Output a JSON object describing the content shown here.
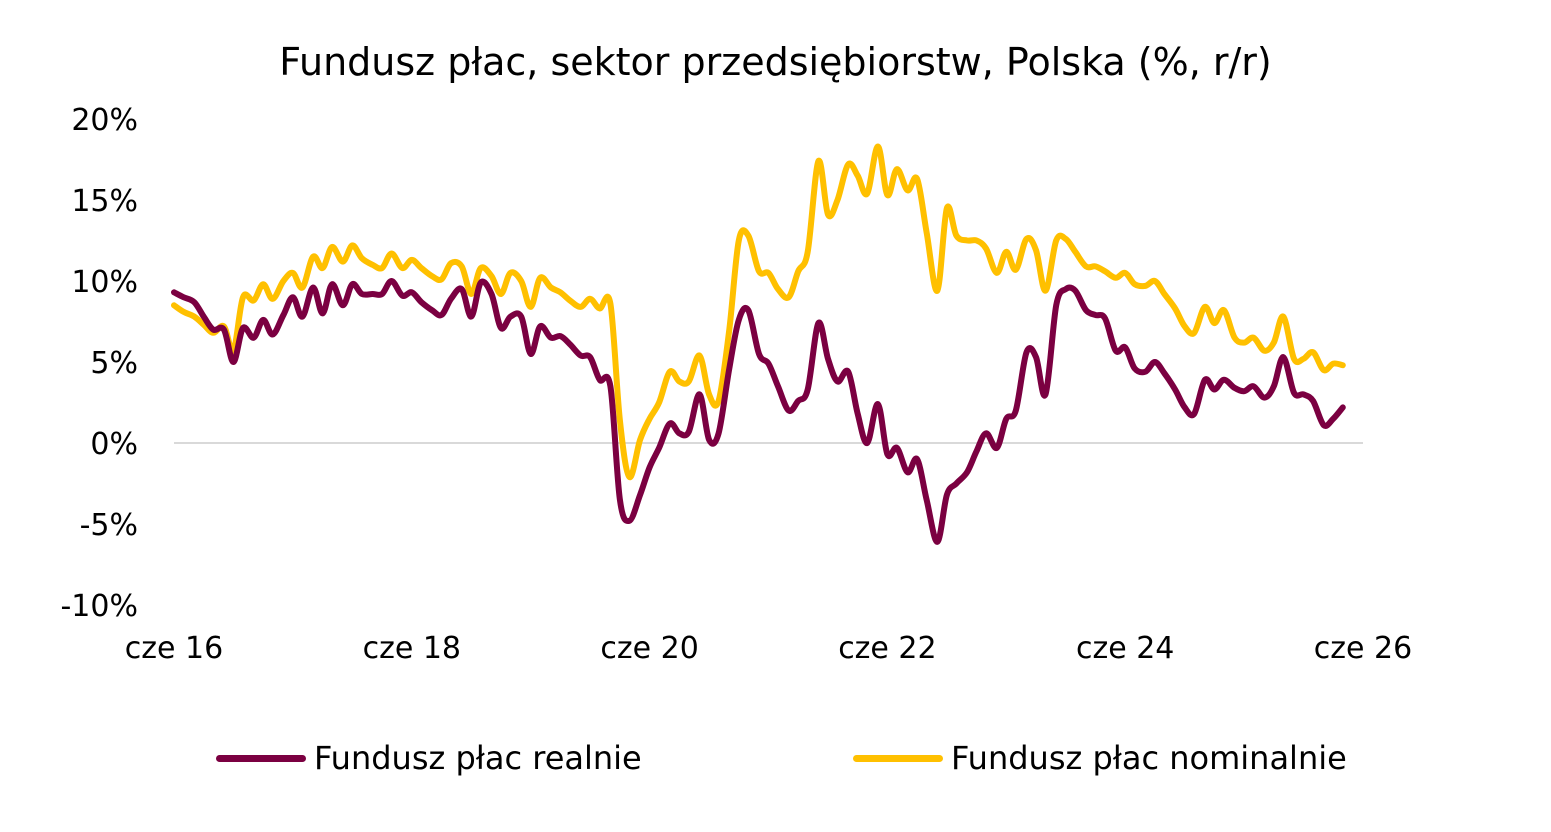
{
  "colors": {
    "real": "#7B0041",
    "nominal": "#FFC000",
    "zero_line": "#D9D9D9"
  },
  "chart_data": {
    "type": "line",
    "title": "Fundusz płac, sektor przedsiębiorstw, Polska (%, r/r)",
    "ylim": [
      -10,
      20
    ],
    "yticks": [
      20,
      15,
      10,
      5,
      0,
      -5,
      -10
    ],
    "ytick_labels": [
      "20%",
      "15%",
      "10%",
      "5%",
      "0%",
      "-5%",
      "-10%"
    ],
    "xlim": [
      2016.5,
      2026.5
    ],
    "xtick_labels": [
      {
        "x": 2016.5,
        "label": "cze 16"
      },
      {
        "x": 2018.5,
        "label": "cze 18"
      },
      {
        "x": 2020.5,
        "label": "cze 20"
      },
      {
        "x": 2022.5,
        "label": "cze 22"
      },
      {
        "x": 2024.5,
        "label": "cze 24"
      },
      {
        "x": 2026.5,
        "label": "cze 26"
      }
    ],
    "grid": false,
    "legend_position": "bottom",
    "series": [
      {
        "name": "Fundusz płac realnie",
        "color": "#7B0041",
        "points": [
          [
            2016.5,
            9.3
          ],
          [
            2016.58,
            9.0
          ],
          [
            2016.67,
            8.7
          ],
          [
            2016.75,
            7.8
          ],
          [
            2016.83,
            7.0
          ],
          [
            2016.92,
            7.0
          ],
          [
            2017.0,
            5.0
          ],
          [
            2017.08,
            7.1
          ],
          [
            2017.17,
            6.5
          ],
          [
            2017.25,
            7.6
          ],
          [
            2017.33,
            6.7
          ],
          [
            2017.42,
            7.9
          ],
          [
            2017.5,
            9.0
          ],
          [
            2017.58,
            7.8
          ],
          [
            2017.67,
            9.6
          ],
          [
            2017.75,
            8.0
          ],
          [
            2017.83,
            9.8
          ],
          [
            2017.92,
            8.5
          ],
          [
            2018.0,
            9.8
          ],
          [
            2018.08,
            9.2
          ],
          [
            2018.17,
            9.2
          ],
          [
            2018.25,
            9.2
          ],
          [
            2018.33,
            10.0
          ],
          [
            2018.42,
            9.1
          ],
          [
            2018.5,
            9.3
          ],
          [
            2018.58,
            8.7
          ],
          [
            2018.67,
            8.2
          ],
          [
            2018.75,
            7.9
          ],
          [
            2018.83,
            8.9
          ],
          [
            2018.92,
            9.5
          ],
          [
            2019.0,
            7.8
          ],
          [
            2019.08,
            9.9
          ],
          [
            2019.17,
            9.2
          ],
          [
            2019.25,
            7.1
          ],
          [
            2019.33,
            7.8
          ],
          [
            2019.42,
            7.8
          ],
          [
            2019.5,
            5.5
          ],
          [
            2019.58,
            7.2
          ],
          [
            2019.67,
            6.5
          ],
          [
            2019.75,
            6.6
          ],
          [
            2019.83,
            6.1
          ],
          [
            2019.92,
            5.4
          ],
          [
            2020.0,
            5.3
          ],
          [
            2020.08,
            3.9
          ],
          [
            2020.17,
            3.5
          ],
          [
            2020.25,
            -3.5
          ],
          [
            2020.33,
            -4.8
          ],
          [
            2020.42,
            -3.2
          ],
          [
            2020.5,
            -1.5
          ],
          [
            2020.58,
            -0.3
          ],
          [
            2020.67,
            1.2
          ],
          [
            2020.75,
            0.6
          ],
          [
            2020.83,
            0.7
          ],
          [
            2020.92,
            3.0
          ],
          [
            2021.0,
            0.2
          ],
          [
            2021.08,
            0.6
          ],
          [
            2021.17,
            4.6
          ],
          [
            2021.25,
            7.6
          ],
          [
            2021.33,
            8.2
          ],
          [
            2021.42,
            5.5
          ],
          [
            2021.5,
            4.9
          ],
          [
            2021.58,
            3.5
          ],
          [
            2021.67,
            2.0
          ],
          [
            2021.75,
            2.6
          ],
          [
            2021.83,
            3.3
          ],
          [
            2021.92,
            7.4
          ],
          [
            2022.0,
            5.2
          ],
          [
            2022.08,
            3.8
          ],
          [
            2022.17,
            4.4
          ],
          [
            2022.25,
            1.8
          ],
          [
            2022.33,
            0.0
          ],
          [
            2022.42,
            2.4
          ],
          [
            2022.5,
            -0.7
          ],
          [
            2022.58,
            -0.3
          ],
          [
            2022.67,
            -1.8
          ],
          [
            2022.75,
            -1.0
          ],
          [
            2022.83,
            -3.5
          ],
          [
            2022.92,
            -6.1
          ],
          [
            2023.0,
            -3.2
          ],
          [
            2023.08,
            -2.5
          ],
          [
            2023.17,
            -1.8
          ],
          [
            2023.25,
            -0.5
          ],
          [
            2023.33,
            0.6
          ],
          [
            2023.42,
            -0.3
          ],
          [
            2023.5,
            1.5
          ],
          [
            2023.58,
            2.0
          ],
          [
            2023.67,
            5.6
          ],
          [
            2023.75,
            5.3
          ],
          [
            2023.83,
            3.0
          ],
          [
            2023.92,
            8.5
          ],
          [
            2024.0,
            9.5
          ],
          [
            2024.08,
            9.4
          ],
          [
            2024.17,
            8.2
          ],
          [
            2024.25,
            7.9
          ],
          [
            2024.33,
            7.7
          ],
          [
            2024.42,
            5.7
          ],
          [
            2024.5,
            5.9
          ],
          [
            2024.58,
            4.6
          ],
          [
            2024.67,
            4.4
          ],
          [
            2024.75,
            5.0
          ],
          [
            2024.83,
            4.3
          ],
          [
            2024.92,
            3.3
          ],
          [
            2025.0,
            2.2
          ],
          [
            2025.08,
            1.8
          ],
          [
            2025.17,
            3.9
          ],
          [
            2025.25,
            3.3
          ],
          [
            2025.33,
            3.9
          ],
          [
            2025.42,
            3.4
          ],
          [
            2025.5,
            3.2
          ],
          [
            2025.58,
            3.5
          ],
          [
            2025.67,
            2.8
          ],
          [
            2025.75,
            3.5
          ],
          [
            2025.83,
            5.3
          ],
          [
            2025.92,
            3.1
          ],
          [
            2026.0,
            3.0
          ],
          [
            2026.08,
            2.6
          ],
          [
            2026.17,
            1.1
          ],
          [
            2026.25,
            1.5
          ],
          [
            2026.33,
            2.2
          ]
        ]
      },
      {
        "name": "Fundusz płac nominalnie",
        "color": "#FFC000",
        "points": [
          [
            2016.5,
            8.5
          ],
          [
            2016.58,
            8.1
          ],
          [
            2016.67,
            7.8
          ],
          [
            2016.75,
            7.3
          ],
          [
            2016.83,
            6.8
          ],
          [
            2016.92,
            7.2
          ],
          [
            2017.0,
            5.7
          ],
          [
            2017.08,
            9.0
          ],
          [
            2017.17,
            8.8
          ],
          [
            2017.25,
            9.8
          ],
          [
            2017.33,
            8.9
          ],
          [
            2017.42,
            10.0
          ],
          [
            2017.5,
            10.5
          ],
          [
            2017.58,
            9.6
          ],
          [
            2017.67,
            11.5
          ],
          [
            2017.75,
            10.8
          ],
          [
            2017.83,
            12.1
          ],
          [
            2017.92,
            11.2
          ],
          [
            2018.0,
            12.2
          ],
          [
            2018.08,
            11.4
          ],
          [
            2018.17,
            11.0
          ],
          [
            2018.25,
            10.8
          ],
          [
            2018.33,
            11.7
          ],
          [
            2018.42,
            10.8
          ],
          [
            2018.5,
            11.3
          ],
          [
            2018.58,
            10.8
          ],
          [
            2018.67,
            10.3
          ],
          [
            2018.75,
            10.1
          ],
          [
            2018.83,
            11.1
          ],
          [
            2018.92,
            10.9
          ],
          [
            2019.0,
            9.2
          ],
          [
            2019.08,
            10.8
          ],
          [
            2019.17,
            10.3
          ],
          [
            2019.25,
            9.2
          ],
          [
            2019.33,
            10.5
          ],
          [
            2019.42,
            10.0
          ],
          [
            2019.5,
            8.4
          ],
          [
            2019.58,
            10.2
          ],
          [
            2019.67,
            9.6
          ],
          [
            2019.75,
            9.3
          ],
          [
            2019.83,
            8.8
          ],
          [
            2019.92,
            8.4
          ],
          [
            2020.0,
            8.9
          ],
          [
            2020.08,
            8.3
          ],
          [
            2020.17,
            8.6
          ],
          [
            2020.25,
            1.4
          ],
          [
            2020.33,
            -2.1
          ],
          [
            2020.42,
            0.2
          ],
          [
            2020.5,
            1.5
          ],
          [
            2020.58,
            2.5
          ],
          [
            2020.67,
            4.4
          ],
          [
            2020.75,
            3.8
          ],
          [
            2020.83,
            3.8
          ],
          [
            2020.92,
            5.4
          ],
          [
            2021.0,
            3.0
          ],
          [
            2021.08,
            2.6
          ],
          [
            2021.17,
            7.0
          ],
          [
            2021.25,
            12.5
          ],
          [
            2021.33,
            12.8
          ],
          [
            2021.42,
            10.6
          ],
          [
            2021.5,
            10.5
          ],
          [
            2021.58,
            9.5
          ],
          [
            2021.67,
            9.0
          ],
          [
            2021.75,
            10.6
          ],
          [
            2021.83,
            11.8
          ],
          [
            2021.92,
            17.4
          ],
          [
            2022.0,
            14.1
          ],
          [
            2022.08,
            15.0
          ],
          [
            2022.17,
            17.2
          ],
          [
            2022.25,
            16.5
          ],
          [
            2022.33,
            15.4
          ],
          [
            2022.42,
            18.3
          ],
          [
            2022.5,
            15.3
          ],
          [
            2022.58,
            16.9
          ],
          [
            2022.67,
            15.6
          ],
          [
            2022.75,
            16.3
          ],
          [
            2022.83,
            13.0
          ],
          [
            2022.92,
            9.4
          ],
          [
            2023.0,
            14.5
          ],
          [
            2023.08,
            12.8
          ],
          [
            2023.17,
            12.5
          ],
          [
            2023.25,
            12.5
          ],
          [
            2023.33,
            12.0
          ],
          [
            2023.42,
            10.5
          ],
          [
            2023.5,
            11.8
          ],
          [
            2023.58,
            10.7
          ],
          [
            2023.67,
            12.6
          ],
          [
            2023.75,
            11.9
          ],
          [
            2023.83,
            9.4
          ],
          [
            2023.92,
            12.5
          ],
          [
            2024.0,
            12.6
          ],
          [
            2024.08,
            11.8
          ],
          [
            2024.17,
            10.9
          ],
          [
            2024.25,
            10.9
          ],
          [
            2024.33,
            10.6
          ],
          [
            2024.42,
            10.2
          ],
          [
            2024.5,
            10.5
          ],
          [
            2024.58,
            9.8
          ],
          [
            2024.67,
            9.7
          ],
          [
            2024.75,
            10.0
          ],
          [
            2024.83,
            9.2
          ],
          [
            2024.92,
            8.3
          ],
          [
            2025.0,
            7.2
          ],
          [
            2025.08,
            6.8
          ],
          [
            2025.17,
            8.4
          ],
          [
            2025.25,
            7.4
          ],
          [
            2025.33,
            8.2
          ],
          [
            2025.42,
            6.5
          ],
          [
            2025.5,
            6.2
          ],
          [
            2025.58,
            6.5
          ],
          [
            2025.67,
            5.7
          ],
          [
            2025.75,
            6.2
          ],
          [
            2025.83,
            7.8
          ],
          [
            2025.92,
            5.2
          ],
          [
            2026.0,
            5.2
          ],
          [
            2026.08,
            5.6
          ],
          [
            2026.17,
            4.5
          ],
          [
            2026.25,
            4.9
          ],
          [
            2026.33,
            4.8
          ]
        ]
      }
    ]
  }
}
